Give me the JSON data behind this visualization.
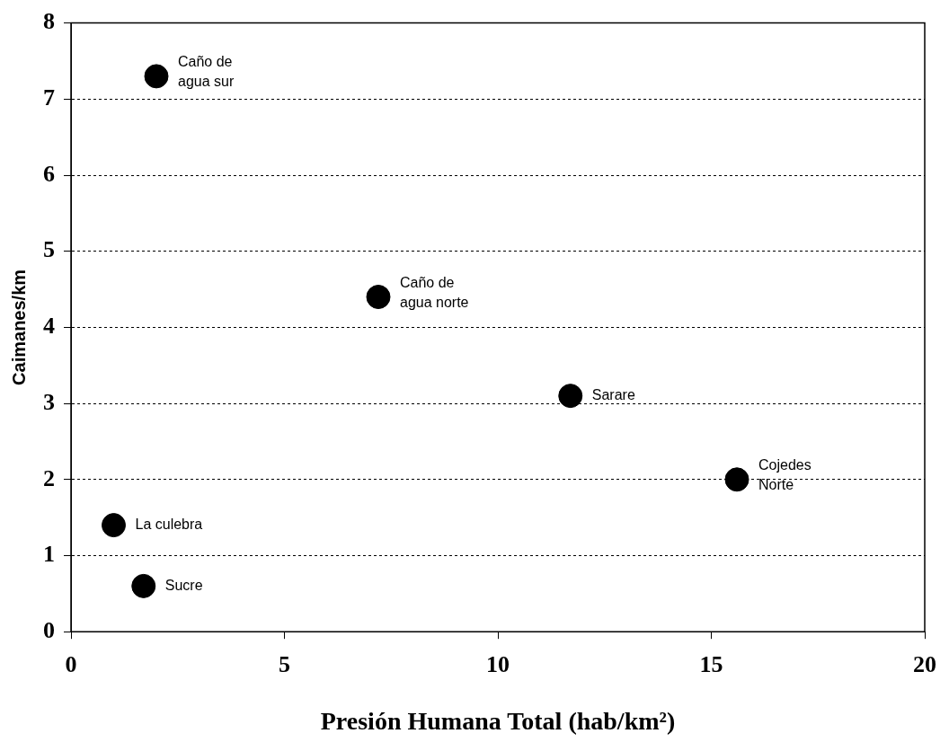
{
  "chart_data": {
    "type": "scatter",
    "xlabel": "Presión Humana Total (hab/km²)",
    "ylabel": "Caimanes/km",
    "x": [
      2.0,
      7.2,
      11.7,
      15.6,
      1.0,
      1.7
    ],
    "values": [
      7.3,
      4.4,
      3.1,
      2.0,
      1.4,
      0.6
    ],
    "color": "#000000",
    "marker": "circle",
    "xlim": [
      0,
      20
    ],
    "xticks": [
      0,
      5,
      10,
      15,
      20
    ],
    "ylim": [
      0,
      8
    ],
    "yticks": [
      0,
      1,
      2,
      3,
      4,
      5,
      6,
      7,
      8
    ],
    "grid": "y",
    "legend": false,
    "annotations": [
      {
        "text": "Caño de\nagua sur",
        "x": 2.0,
        "y": 7.3
      },
      {
        "text": "Caño de\nagua norte",
        "x": 7.2,
        "y": 4.4
      },
      {
        "text": "Sarare",
        "x": 11.7,
        "y": 3.1
      },
      {
        "text": "Cojedes\nNorte",
        "x": 15.6,
        "y": 2.0
      },
      {
        "text": "La culebra",
        "x": 1.0,
        "y": 1.4
      },
      {
        "text": "Sucre",
        "x": 1.7,
        "y": 0.6
      }
    ]
  }
}
